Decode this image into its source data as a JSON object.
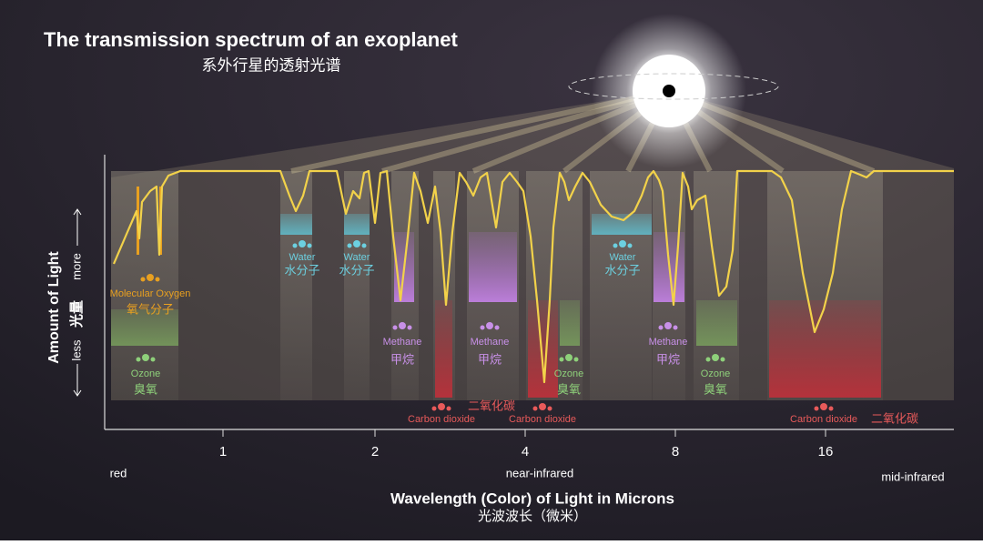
{
  "header": {
    "title": "The transmission spectrum of an exoplanet",
    "subtitle": "系外行星的透射光谱"
  },
  "axis": {
    "x_title": "Wavelength (Color) of Light in Microns",
    "x_title_zh": "光波波长（微米）",
    "x_ticks": [
      "1",
      "2",
      "4",
      "8",
      "16"
    ],
    "x_regions": [
      "red",
      "near-infrared",
      "mid-infrared"
    ],
    "y_title": "Amount of Light",
    "y_title_zh": "光量",
    "y_low": "less",
    "y_high": "more"
  },
  "molecules": [
    {
      "name": "Molecular Oxygen",
      "name_zh": "氧气分子"
    },
    {
      "name": "Ozone",
      "name_zh": "臭氧"
    },
    {
      "name": "Water",
      "name_zh": "水分子"
    },
    {
      "name": "Water",
      "name_zh": "水分子"
    },
    {
      "name": "Methane",
      "name_zh": "甲烷"
    },
    {
      "name": "Carbon dioxide",
      "name_zh": "二氧化碳"
    },
    {
      "name": "Methane",
      "name_zh": "甲烷"
    },
    {
      "name": "Carbon dioxide"
    },
    {
      "name": "Ozone",
      "name_zh": "臭氧"
    },
    {
      "name": "Water",
      "name_zh": "水分子"
    },
    {
      "name": "Methane",
      "name_zh": "甲烷"
    },
    {
      "name": "Ozone",
      "name_zh": "臭氧"
    },
    {
      "name": "Carbon dioxide",
      "name_zh": "二氧化碳"
    }
  ]
}
